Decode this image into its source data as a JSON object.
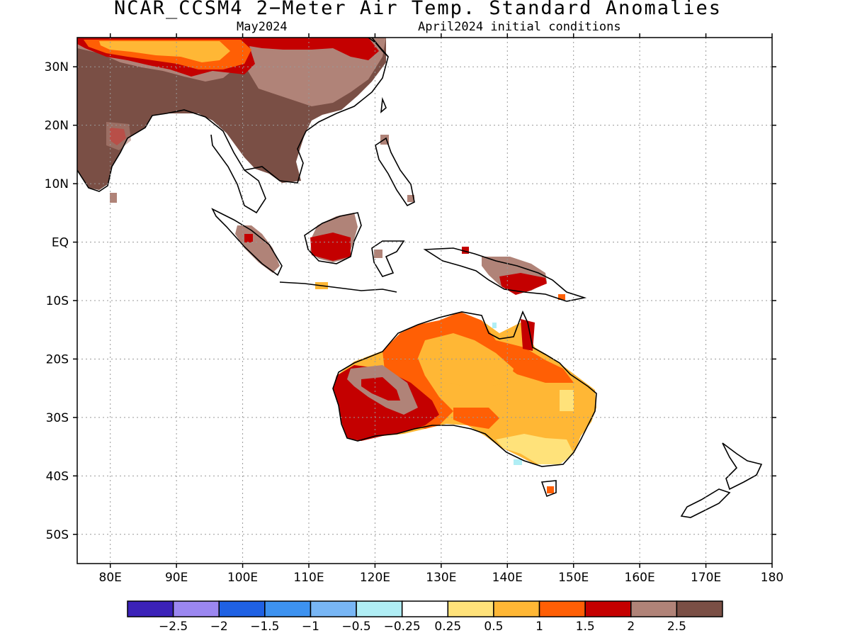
{
  "title": "NCAR_CCSM4 2−Meter Air Temp. Standard Anomalies",
  "subtitle_left": "May2024",
  "subtitle_right": "April2024 initial conditions",
  "map": {
    "lon_range": [
      75,
      180
    ],
    "lat_range": [
      -55,
      35
    ],
    "lat_labels": [
      {
        "lat": 30,
        "text": "30N"
      },
      {
        "lat": 20,
        "text": "20N"
      },
      {
        "lat": 10,
        "text": "10N"
      },
      {
        "lat": 0,
        "text": "EQ"
      },
      {
        "lat": -10,
        "text": "10S"
      },
      {
        "lat": -20,
        "text": "20S"
      },
      {
        "lat": -30,
        "text": "30S"
      },
      {
        "lat": -40,
        "text": "40S"
      },
      {
        "lat": -50,
        "text": "50S"
      }
    ],
    "lon_labels": [
      {
        "lon": 80,
        "text": "80E"
      },
      {
        "lon": 90,
        "text": "90E"
      },
      {
        "lon": 100,
        "text": "100E"
      },
      {
        "lon": 110,
        "text": "110E"
      },
      {
        "lon": 120,
        "text": "120E"
      },
      {
        "lon": 130,
        "text": "130E"
      },
      {
        "lon": 140,
        "text": "140E"
      },
      {
        "lon": 150,
        "text": "150E"
      },
      {
        "lon": 160,
        "text": "160E"
      },
      {
        "lon": 170,
        "text": "170E"
      },
      {
        "lon": 180,
        "text": "180"
      }
    ],
    "grid": true
  },
  "colorbar": {
    "colors": [
      "#3b22b8",
      "#9b87f0",
      "#1f61e3",
      "#3d92f0",
      "#78b6f5",
      "#b0eef5",
      "#ffffff",
      "#ffe27a",
      "#ffb735",
      "#ff5f05",
      "#c40000",
      "#b08378",
      "#7a4f45"
    ],
    "labels": [
      "−2.5",
      "−2",
      "−1.5",
      "−1",
      "−0.5",
      "−0.25",
      "0.25",
      "0.5",
      "1",
      "1.5",
      "2",
      "2.5"
    ]
  },
  "anomaly_colors": {
    "dark_brown": "#7a4f45",
    "light_brown": "#b08378",
    "dark_red": "#c40000",
    "orange": "#ff5f05",
    "light_orange": "#ffb735",
    "yellow": "#ffe27a",
    "light_blue": "#b0eef5"
  }
}
